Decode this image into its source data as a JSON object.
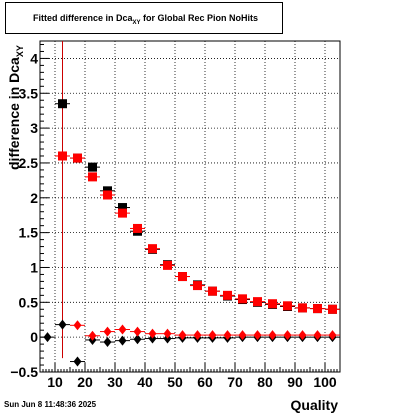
{
  "title": {
    "main": "Fitted difference in Dca",
    "sub": "XY",
    "suffix": " for Global Rec Pion NoHits"
  },
  "ylabel": {
    "main": "difference in Dca",
    "sub": "XY"
  },
  "xlabel": "Quality",
  "footer": "Sun Jun  8 11:48:36 2025",
  "colors": {
    "black_series": "#000000",
    "red_series": "#ff0000",
    "grid": "#000000",
    "vline": "#cc0000"
  },
  "chart_data": {
    "type": "scatter",
    "xlim": [
      5,
      105
    ],
    "ylim": [
      -0.5,
      4.25
    ],
    "grid": true,
    "x_ticks": [
      10,
      20,
      30,
      40,
      50,
      60,
      70,
      80,
      90,
      100
    ],
    "y_ticks": [
      -0.5,
      0,
      0.5,
      1,
      1.5,
      2,
      2.5,
      3,
      3.5,
      4
    ],
    "x_tick_labels": [
      "10",
      "20",
      "30",
      "40",
      "50",
      "60",
      "70",
      "80",
      "90",
      "100"
    ],
    "y_tick_labels": [
      "−0.5",
      "0",
      "0.5",
      "1",
      "1.5",
      "2",
      "2.5",
      "3",
      "3.5",
      "4"
    ],
    "vertical_line_x": 12.5,
    "series": [
      {
        "marker": "square",
        "color": "black",
        "x": [
          12.5,
          17.5,
          22.5,
          27.5,
          32.5,
          37.5,
          42.5,
          47.5,
          52.5,
          57.5,
          62.5,
          67.5,
          72.5,
          77.5,
          82.5,
          87.5,
          92.5,
          97.5,
          102.5
        ],
        "y": [
          3.35,
          2.57,
          2.44,
          2.1,
          1.86,
          1.52,
          1.26,
          1.04,
          0.87,
          0.75,
          0.66,
          0.59,
          0.54,
          0.5,
          0.47,
          0.44,
          0.42,
          0.41,
          0.4
        ]
      },
      {
        "marker": "square",
        "color": "red",
        "x": [
          12.5,
          17.5,
          22.5,
          27.5,
          32.5,
          37.5,
          42.5,
          47.5,
          52.5,
          57.5,
          62.5,
          67.5,
          72.5,
          77.5,
          82.5,
          87.5,
          92.5,
          97.5,
          102.5
        ],
        "y": [
          2.6,
          2.57,
          2.3,
          2.04,
          1.78,
          1.56,
          1.27,
          1.03,
          0.87,
          0.74,
          0.66,
          0.6,
          0.55,
          0.51,
          0.48,
          0.45,
          0.42,
          0.41,
          0.4
        ]
      },
      {
        "marker": "diamond",
        "color": "black",
        "x": [
          7.5,
          12.5,
          17.5,
          22.5,
          27.5,
          32.5,
          37.5,
          42.5,
          47.5,
          52.5,
          57.5,
          62.5,
          67.5,
          72.5,
          77.5,
          82.5,
          87.5,
          92.5,
          97.5,
          102.5
        ],
        "y": [
          0.0,
          0.18,
          -0.35,
          -0.04,
          -0.07,
          -0.05,
          -0.03,
          -0.02,
          -0.02,
          -0.01,
          -0.01,
          -0.01,
          -0.01,
          0.0,
          0.0,
          0.0,
          0.0,
          0.0,
          0.0,
          0.0
        ]
      },
      {
        "marker": "diamond",
        "color": "red",
        "x": [
          12.5,
          17.5,
          22.5,
          27.5,
          32.5,
          37.5,
          42.5,
          47.5,
          52.5,
          57.5,
          62.5,
          67.5,
          72.5,
          77.5,
          82.5,
          87.5,
          92.5,
          97.5,
          102.5
        ],
        "y": [
          2.6,
          0.17,
          0.02,
          0.08,
          0.11,
          0.08,
          0.05,
          0.05,
          0.03,
          0.03,
          0.03,
          0.03,
          0.03,
          0.03,
          0.03,
          0.03,
          0.03,
          0.03,
          0.03
        ]
      }
    ]
  }
}
